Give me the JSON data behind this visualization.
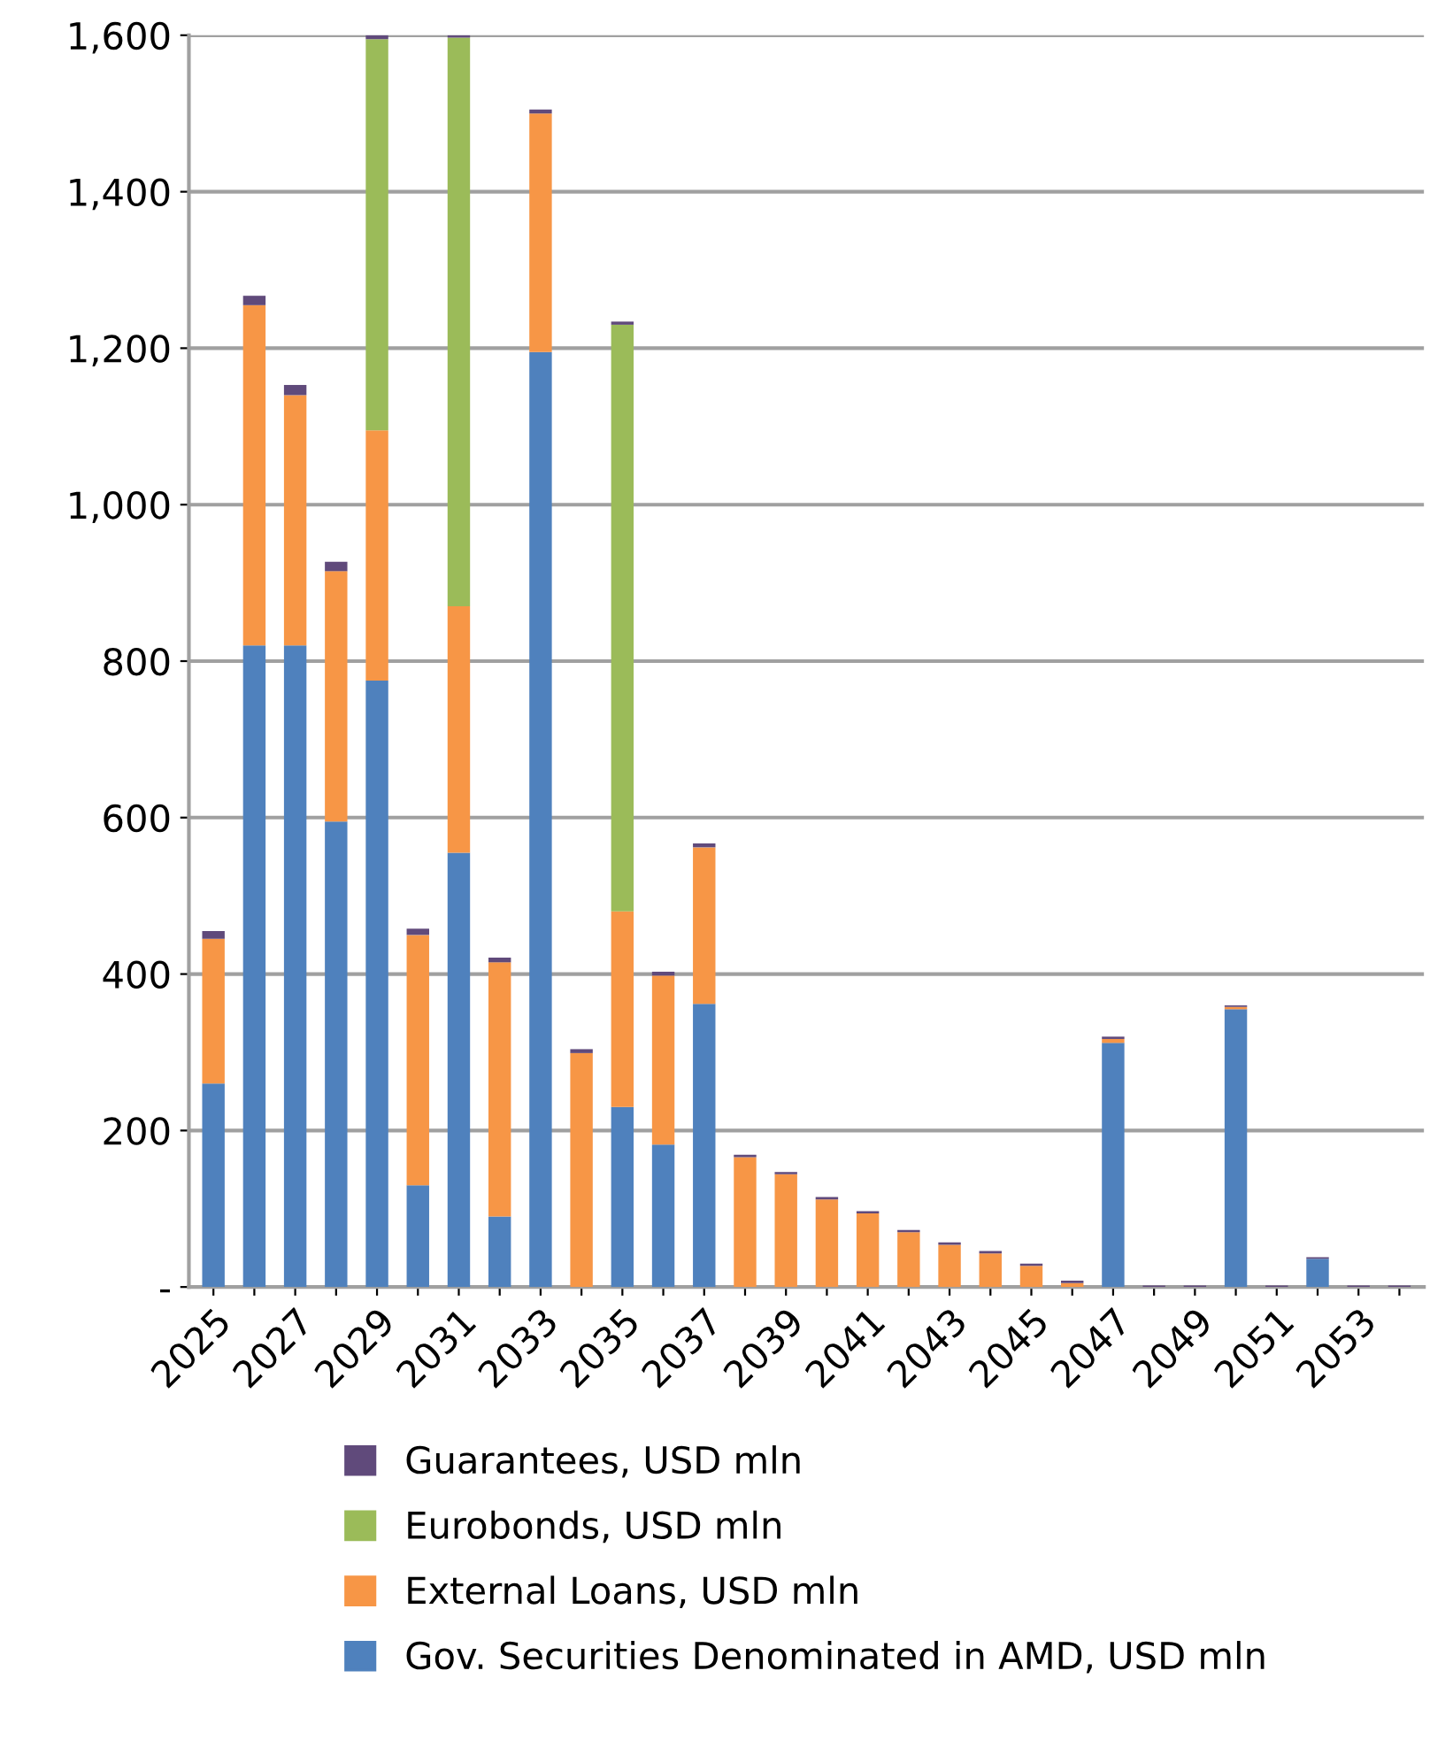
{
  "chart_data": {
    "type": "bar",
    "stacked": true,
    "grid": "y",
    "legend": "bottom",
    "categories": [
      "2025",
      null,
      "2027",
      null,
      "2029",
      null,
      "2031",
      null,
      "2033",
      null,
      "2035",
      null,
      "2037",
      null,
      "2039",
      null,
      "2041",
      null,
      "2043",
      null,
      "2045",
      null,
      "2047",
      null,
      "2049",
      null,
      "2051",
      null,
      "2053",
      null
    ],
    "ylim": [
      0,
      1600
    ],
    "yticks": [
      {
        "value": 0,
        "label": "-"
      },
      {
        "value": 200,
        "label": "200"
      },
      {
        "value": 400,
        "label": "400"
      },
      {
        "value": 600,
        "label": "600"
      },
      {
        "value": 800,
        "label": "800"
      },
      {
        "value": 1000,
        "label": "1,000"
      },
      {
        "value": 1200,
        "label": "1,200"
      },
      {
        "value": 1400,
        "label": "1,400"
      },
      {
        "value": 1600,
        "label": "1,600"
      }
    ],
    "series": [
      {
        "name": "Gov. Securities Denominated in AMD, USD mln",
        "color": "#4f81bd",
        "values": [
          260,
          820,
          820,
          595,
          775,
          130,
          555,
          90,
          1195,
          0,
          230,
          182,
          362,
          0,
          0,
          0,
          0,
          0,
          0,
          0,
          0,
          0,
          312,
          0,
          0,
          355,
          0,
          36,
          0,
          0
        ]
      },
      {
        "name": "External Loans, USD mln",
        "color": "#f79646",
        "values": [
          185,
          435,
          320,
          320,
          320,
          320,
          315,
          325,
          305,
          299,
          250,
          216,
          200,
          166,
          144,
          112,
          94,
          70,
          54,
          43,
          27,
          5,
          5,
          0,
          0,
          3,
          0,
          0,
          0,
          0
        ]
      },
      {
        "name": "Eurobonds, USD mln",
        "color": "#9bbb59",
        "values": [
          0,
          0,
          0,
          0,
          500,
          0,
          727,
          0,
          0,
          0,
          750,
          0,
          0,
          0,
          0,
          0,
          0,
          0,
          0,
          0,
          0,
          0,
          0,
          0,
          0,
          0,
          0,
          0,
          0,
          0
        ]
      },
      {
        "name": "Guarantees, USD mln",
        "color": "#604a7b",
        "values": [
          10,
          12,
          13,
          12,
          5,
          8,
          3,
          6,
          5,
          5,
          4,
          5,
          5,
          3,
          3,
          3,
          3,
          3,
          3,
          3,
          3,
          3,
          3,
          2,
          2,
          2,
          2,
          2,
          2,
          2
        ]
      }
    ]
  }
}
